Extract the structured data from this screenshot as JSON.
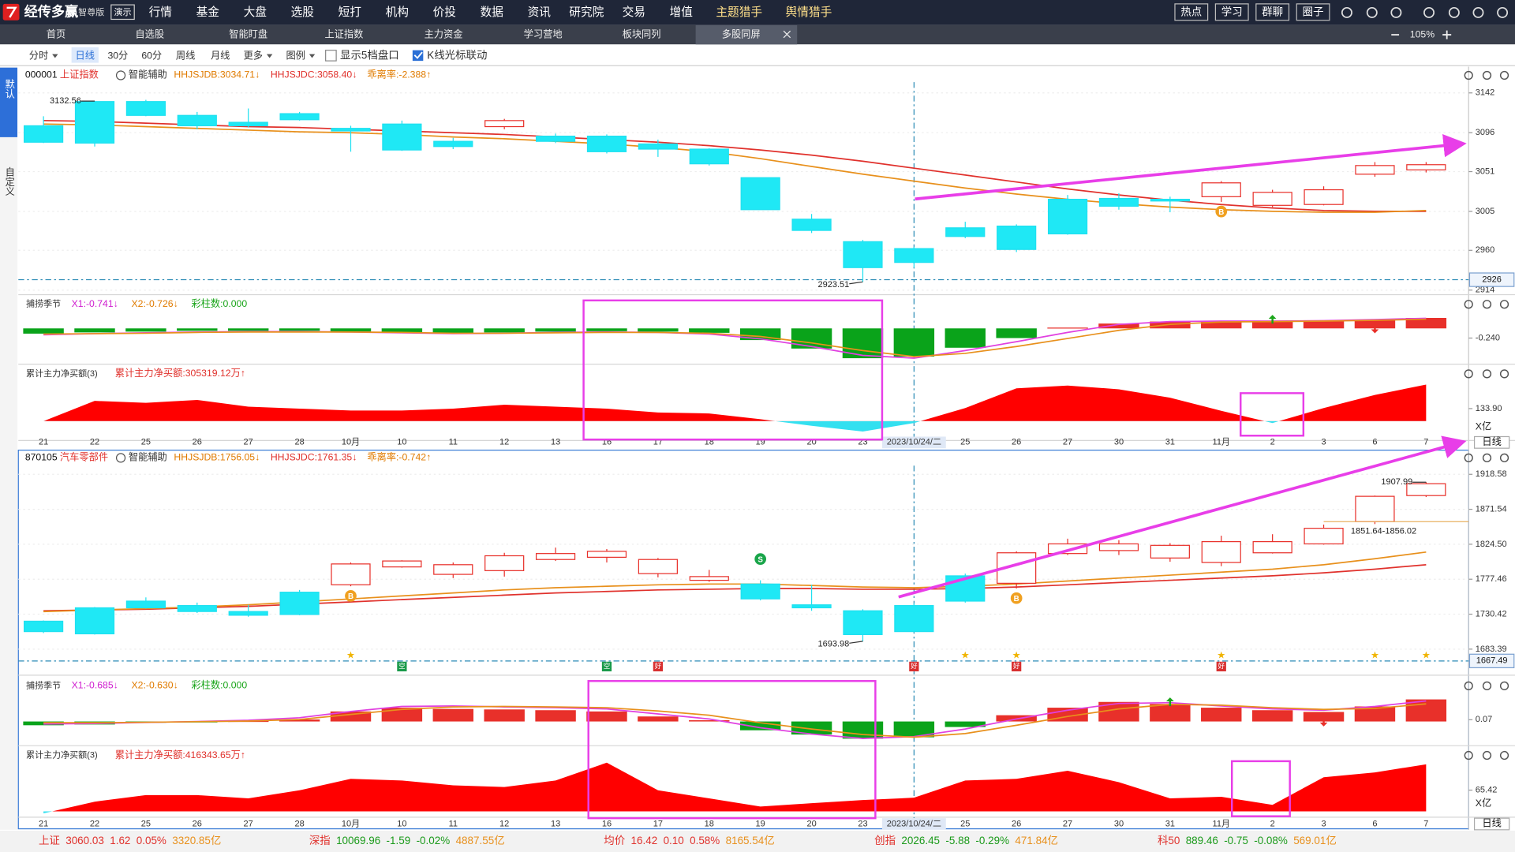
{
  "titlebar": {
    "logo": "经传多赢",
    "edition": "智尊版",
    "demo": "演示",
    "menu": [
      "行情",
      "基金",
      "大盘",
      "选股",
      "短打",
      "机构",
      "价投",
      "数据",
      "资讯",
      "研究院",
      "交易",
      "增值",
      "主题猎手",
      "舆情猎手"
    ],
    "buttons": [
      "热点",
      "学习",
      "群聊",
      "圈子"
    ]
  },
  "tabs": [
    "首页",
    "自选股",
    "智能盯盘",
    "上证指数",
    "主力资金",
    "学习营地",
    "板块同列",
    "多股同屏"
  ],
  "zoom": "105%",
  "toolbar": {
    "periods": [
      "分时",
      "日线",
      "30分",
      "60分",
      "周线",
      "月线",
      "更多",
      "图例"
    ],
    "options": [
      "显示5档盘口",
      "K线光标联动"
    ]
  },
  "side_tabs": [
    "默认",
    "自定义"
  ],
  "chart_data": [
    {
      "type": "candlestick",
      "code": "000001",
      "name": "上证指数",
      "assist": "智能辅助",
      "legend": [
        {
          "text": "HHJSJDB:3034.71↓",
          "color": "#e07b00"
        },
        {
          "text": "HHJSJDC:3058.40↓",
          "color": "#e0312c"
        },
        {
          "text": "乖离率:-2.388↑",
          "color": "#e07b00"
        }
      ],
      "categories": [
        "21",
        "22",
        "25",
        "26",
        "27",
        "28",
        "10月",
        "10",
        "11",
        "12",
        "13",
        "16",
        "17",
        "18",
        "19",
        "20",
        "23",
        "2023/10/24/二",
        "25",
        "26",
        "27",
        "30",
        "31",
        "11月",
        "2",
        "3",
        "6",
        "7"
      ],
      "open": [
        3104,
        3132,
        3132,
        3116,
        3108,
        3118,
        3101,
        3106,
        3086,
        3103,
        3092,
        3092,
        3083,
        3077,
        3044,
        2996,
        2970,
        2962,
        2986,
        2988,
        3019,
        3020,
        3019,
        3022,
        3012,
        3013,
        3048,
        3053
      ],
      "high": [
        3115,
        3132.56,
        3134,
        3120,
        3124,
        3120,
        3104,
        3110,
        3090,
        3112,
        3095,
        3094,
        3088,
        3078,
        3044,
        3002,
        2972,
        2964,
        2993,
        2990,
        3024,
        3026,
        3022,
        3040,
        3030,
        3034,
        3062,
        3062
      ],
      "low": [
        3084,
        3080,
        3115,
        3100,
        3102,
        3110,
        3074,
        3075,
        3077,
        3100,
        3084,
        3072,
        3068,
        3058,
        3007,
        2980,
        2923.51,
        2940,
        2974,
        2958,
        2978,
        3007,
        3004,
        3016,
        3010,
        3012,
        3045,
        3050
      ],
      "close": [
        3085,
        3084,
        3116,
        3104,
        3104,
        3111,
        3098,
        3076,
        3080,
        3110,
        3086,
        3074,
        3077,
        3060,
        3007,
        2983,
        2940,
        2946,
        2976,
        2961,
        2979,
        3011,
        3017,
        3038,
        3027,
        3030,
        3058,
        3059
      ],
      "lines": [
        {
          "color": "#e0312c",
          "values": [
            3110,
            3109,
            3107,
            3105,
            3103,
            3102,
            3100,
            3098,
            3096,
            3094,
            3091,
            3088,
            3085,
            3081,
            3076,
            3070,
            3063,
            3055,
            3047,
            3039,
            3031,
            3024,
            3018,
            3013,
            3009,
            3006,
            3005,
            3005
          ]
        },
        {
          "color": "#e8901c",
          "values": [
            3106,
            3105,
            3103,
            3101,
            3099,
            3097,
            3096,
            3094,
            3091,
            3089,
            3086,
            3083,
            3079,
            3074,
            3066,
            3057,
            3048,
            3040,
            3032,
            3025,
            3019,
            3014,
            3010,
            3007,
            3005,
            3004,
            3004,
            3006
          ]
        }
      ],
      "ylim": [
        2911,
        3169
      ],
      "yticks": [
        3142,
        3096,
        3051,
        3005,
        2960,
        2914
      ],
      "current": 2926,
      "annotations": [
        {
          "at": 1,
          "value": 3132.56
        },
        {
          "at": 16,
          "value": 2923.51
        }
      ],
      "signals": [
        {
          "at": 23,
          "label": "B"
        }
      ],
      "indicator": {
        "type": "bar",
        "title": "捕捞季节",
        "legend": [
          {
            "text": "X1:-0.741↓",
            "color": "#d020d0"
          },
          {
            "text": "X2:-0.726↓",
            "color": "#e07b00"
          },
          {
            "text": "彩柱数:0.000",
            "color": "#1aa51a"
          }
        ],
        "values": [
          -0.13,
          -0.1,
          -0.08,
          -0.06,
          -0.06,
          -0.06,
          -0.08,
          -0.1,
          -0.12,
          -0.1,
          -0.08,
          -0.07,
          -0.08,
          -0.11,
          -0.29,
          -0.5,
          -0.74,
          -0.7,
          -0.48,
          -0.24,
          0.02,
          0.12,
          0.17,
          0.19,
          0.17,
          0.18,
          0.21,
          0.26
        ],
        "lines": [
          {
            "color": "#e040e0",
            "values": [
              -0.16,
              -0.13,
              -0.11,
              -0.09,
              -0.08,
              -0.08,
              -0.09,
              -0.11,
              -0.13,
              -0.12,
              -0.1,
              -0.09,
              -0.1,
              -0.14,
              -0.26,
              -0.45,
              -0.67,
              -0.74,
              -0.55,
              -0.33,
              -0.1,
              0.1,
              0.17,
              0.18,
              0.18,
              0.19,
              0.22,
              0.25
            ]
          },
          {
            "color": "#e8901c",
            "values": [
              -0.14,
              -0.13,
              -0.12,
              -0.1,
              -0.09,
              -0.09,
              -0.09,
              -0.1,
              -0.12,
              -0.12,
              -0.11,
              -0.1,
              -0.1,
              -0.12,
              -0.2,
              -0.36,
              -0.55,
              -0.7,
              -0.62,
              -0.45,
              -0.25,
              -0.05,
              0.1,
              0.16,
              0.17,
              0.18,
              0.2,
              0.23
            ]
          }
        ],
        "ylim": [
          -0.84,
          0.79
        ],
        "yticks": [
          {
            "value": -0.24,
            "label": "-0.240"
          }
        ]
      },
      "flow": {
        "type": "area",
        "title": "累计主力净买额(3)",
        "legend": [
          {
            "text": "累计主力净买额:305319.12万↑",
            "color": "#e0312c"
          }
        ],
        "values": [
          0,
          216,
          195,
          226,
          154,
          134,
          113,
          113,
          134,
          175,
          154,
          134,
          92,
          82,
          20,
          -50,
          -110,
          -20,
          140,
          350,
          380,
          340,
          250,
          110,
          -20,
          140,
          280,
          390
        ],
        "ylim": [
          -196,
          587
        ],
        "yticks": [
          {
            "value": 133.9,
            "label": "133.90"
          }
        ],
        "unit": "X亿",
        "color": "#ff0000",
        "negative_color": "#33e0f0"
      },
      "period": "日线"
    },
    {
      "type": "candlestick",
      "code": "870105",
      "name": "汽车零部件",
      "assist": "智能辅助",
      "legend": [
        {
          "text": "HHJSJDB:1756.05↓",
          "color": "#e07b00"
        },
        {
          "text": "HHJSJDC:1761.35↓",
          "color": "#e0312c"
        },
        {
          "text": "乖离率:-0.742↑",
          "color": "#e07b00"
        }
      ],
      "categories": [
        "21",
        "22",
        "25",
        "26",
        "27",
        "28",
        "10月",
        "10",
        "11",
        "12",
        "13",
        "16",
        "17",
        "18",
        "19",
        "20",
        "23",
        "2023/10/24/二",
        "25",
        "26",
        "27",
        "30",
        "31",
        "11月",
        "2",
        "3",
        "6",
        "7"
      ],
      "open": [
        1721,
        1739,
        1748,
        1742,
        1734,
        1760,
        1770,
        1794,
        1784,
        1789,
        1804,
        1807,
        1785,
        1776,
        1771,
        1743,
        1735,
        1742,
        1782,
        1772,
        1812,
        1816,
        1806,
        1800,
        1813,
        1825,
        1855,
        1890
      ],
      "high": [
        1722,
        1740,
        1753,
        1746,
        1743,
        1763,
        1800,
        1803,
        1800,
        1813,
        1820,
        1818,
        1806,
        1790,
        1776,
        1770,
        1737,
        1745,
        1785,
        1815,
        1832,
        1830,
        1826,
        1836,
        1838,
        1851,
        1890,
        1907.99
      ],
      "low": [
        1705,
        1703,
        1738,
        1732,
        1727,
        1729,
        1768,
        1793,
        1779,
        1781,
        1802,
        1800,
        1780,
        1774,
        1749,
        1735,
        1693.98,
        1706,
        1746,
        1765,
        1810,
        1810,
        1801,
        1795,
        1812,
        1824,
        1851.64,
        1888
      ],
      "close": [
        1707,
        1704,
        1739,
        1734,
        1729,
        1730,
        1798,
        1802,
        1797,
        1809,
        1812,
        1815,
        1804,
        1781,
        1751,
        1739,
        1703,
        1707,
        1748,
        1813,
        1825,
        1825,
        1823,
        1828,
        1828,
        1846,
        1889,
        1906
      ],
      "lines": [
        {
          "color": "#e0312c",
          "values": [
            1735,
            1736,
            1737,
            1739,
            1741,
            1744,
            1747,
            1750,
            1753,
            1756,
            1759,
            1761,
            1763,
            1764,
            1765,
            1765,
            1764,
            1764,
            1765,
            1767,
            1770,
            1773,
            1776,
            1779,
            1782,
            1786,
            1791,
            1797
          ]
        },
        {
          "color": "#e8901c",
          "values": [
            1734,
            1736,
            1738,
            1740,
            1743,
            1747,
            1751,
            1755,
            1759,
            1763,
            1766,
            1768,
            1770,
            1771,
            1771,
            1769,
            1767,
            1766,
            1768,
            1771,
            1775,
            1779,
            1783,
            1787,
            1791,
            1797,
            1805,
            1814
          ]
        }
      ],
      "ylim": [
        1650.9,
        1949.8
      ],
      "yticks": [
        1918.58,
        1871.54,
        {
          "value": 1824.5,
          "label": "1824.50"
        },
        1777.46,
        1730.42,
        1683.39
      ],
      "current": 1667.49,
      "annotations": [
        {
          "at": 27,
          "value": 1907.99
        },
        {
          "at": 16,
          "value": 1693.98
        }
      ],
      "range_note": "1851.64-1856.02",
      "signals": [
        {
          "at": 6,
          "label": "B"
        },
        {
          "at": 14,
          "label": "S"
        },
        {
          "at": 19,
          "label": "B"
        }
      ],
      "marks": [
        {
          "at": 6,
          "label": "★"
        },
        {
          "at": 18,
          "label": "★"
        },
        {
          "at": 19,
          "label": "★"
        },
        {
          "at": 23,
          "label": "★"
        },
        {
          "at": 26,
          "label": "★"
        },
        {
          "at": 27,
          "label": "★"
        }
      ],
      "tags": [
        {
          "at": 7,
          "label": "空"
        },
        {
          "at": 11,
          "label": "空"
        },
        {
          "at": 12,
          "label": "好"
        },
        {
          "at": 17,
          "label": "好"
        },
        {
          "at": 19,
          "label": "好"
        },
        {
          "at": 23,
          "label": "好"
        }
      ],
      "indicator": {
        "type": "bar",
        "title": "捕捞季节",
        "legend": [
          {
            "text": "X1:-0.685↓",
            "color": "#d020d0"
          },
          {
            "text": "X2:-0.630↓",
            "color": "#e07b00"
          },
          {
            "text": "彩柱数:0.000",
            "color": "#1aa51a"
          }
        ],
        "values": [
          -0.15,
          -0.12,
          -0.05,
          -0.03,
          0.02,
          0.08,
          0.4,
          0.55,
          0.5,
          0.48,
          0.45,
          0.4,
          0.2,
          0.05,
          -0.35,
          -0.52,
          -0.685,
          -0.63,
          -0.22,
          0.25,
          0.55,
          0.78,
          0.7,
          0.55,
          0.45,
          0.38,
          0.6,
          0.88
        ],
        "lines": [
          {
            "color": "#e040e0",
            "values": [
              -0.1,
              -0.08,
              -0.04,
              0.0,
              0.05,
              0.15,
              0.4,
              0.6,
              0.62,
              0.58,
              0.55,
              0.5,
              0.3,
              0.1,
              -0.25,
              -0.5,
              -0.68,
              -0.6,
              -0.3,
              0.1,
              0.45,
              0.72,
              0.75,
              0.62,
              0.5,
              0.45,
              0.6,
              0.82
            ]
          },
          {
            "color": "#e8901c",
            "values": [
              -0.05,
              -0.05,
              -0.03,
              -0.01,
              0.02,
              0.08,
              0.28,
              0.48,
              0.58,
              0.6,
              0.58,
              0.55,
              0.42,
              0.25,
              -0.05,
              -0.3,
              -0.52,
              -0.63,
              -0.48,
              -0.15,
              0.2,
              0.5,
              0.68,
              0.65,
              0.55,
              0.48,
              0.52,
              0.7
            ]
          }
        ],
        "ylim": [
          -0.89,
          1.69
        ],
        "yticks": [
          0.07
        ]
      },
      "flow": {
        "type": "area",
        "title": "累计主力净买额(3)",
        "legend": [
          {
            "text": "累计主力净买额:416343.65万↑",
            "color": "#e0312c"
          }
        ],
        "values": [
          -6,
          30,
          50,
          50,
          40,
          65,
          100,
          95,
          80,
          75,
          95,
          150,
          65,
          40,
          15,
          25,
          35,
          42,
          95,
          100,
          125,
          90,
          40,
          45,
          20,
          105,
          120,
          145
        ],
        "ylim": [
          -15,
          199
        ],
        "yticks": [
          65.42
        ],
        "unit": "X亿",
        "color": "#ff0000",
        "negative_color": "#33e0f0"
      },
      "period": "日线"
    }
  ],
  "statusbar": [
    {
      "name": "上证",
      "price": "3060.03",
      "change": "1.62",
      "pct": "0.05%",
      "amount": "3320.85亿"
    },
    {
      "name": "深指",
      "price": "10069.96",
      "change": "-1.59",
      "pct": "-0.02%",
      "amount": "4887.55亿"
    },
    {
      "name": "均价",
      "price": "16.42",
      "change": "0.10",
      "pct": "0.58%",
      "amount": "8165.54亿"
    },
    {
      "name": "创指",
      "price": "2026.45",
      "change": "-5.88",
      "pct": "-0.29%",
      "amount": "471.84亿"
    },
    {
      "name": "科50",
      "price": "889.46",
      "change": "-0.75",
      "pct": "-0.08%",
      "amount": "569.01亿"
    }
  ]
}
